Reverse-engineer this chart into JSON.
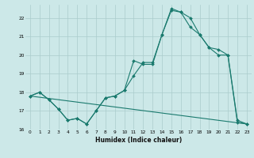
{
  "xlabel": "Humidex (Indice chaleur)",
  "bg_color": "#cce8e8",
  "line_color": "#1a7a6e",
  "line1_x": [
    0,
    1,
    2,
    3,
    4,
    5,
    6,
    7,
    8,
    9,
    10,
    11,
    12,
    13,
    14,
    15,
    16,
    17,
    18,
    19,
    20,
    21,
    22,
    23
  ],
  "line1_y": [
    17.8,
    18.0,
    17.6,
    17.1,
    16.5,
    16.6,
    16.3,
    17.0,
    17.7,
    17.8,
    18.1,
    19.7,
    19.5,
    19.5,
    21.1,
    22.5,
    22.3,
    22.0,
    21.1,
    20.4,
    20.3,
    20.0,
    16.4,
    16.3
  ],
  "line2_x": [
    0,
    1,
    2,
    3,
    4,
    5,
    6,
    7,
    8,
    9,
    10,
    11,
    12,
    13,
    14,
    15,
    16,
    17,
    18,
    19,
    20,
    21,
    22,
    23
  ],
  "line2_y": [
    17.8,
    18.0,
    17.6,
    17.1,
    16.5,
    16.6,
    16.3,
    17.0,
    17.7,
    17.8,
    18.1,
    18.9,
    19.6,
    19.6,
    21.1,
    22.4,
    22.3,
    21.5,
    21.1,
    20.4,
    20.0,
    20.0,
    16.5,
    16.3
  ],
  "line3_x": [
    0,
    23
  ],
  "line3_y": [
    17.8,
    16.3
  ],
  "ylim": [
    16,
    22.7
  ],
  "xlim": [
    -0.5,
    23.5
  ],
  "yticks": [
    16,
    17,
    18,
    19,
    20,
    21,
    22
  ],
  "xticks": [
    0,
    1,
    2,
    3,
    4,
    5,
    6,
    7,
    8,
    9,
    10,
    11,
    12,
    13,
    14,
    15,
    16,
    17,
    18,
    19,
    20,
    21,
    22,
    23
  ],
  "grid_color": "#aacccc",
  "marker": "D",
  "markersize": 2.0,
  "linewidth": 0.8,
  "tick_fontsize": 4.2,
  "xlabel_fontsize": 5.5
}
